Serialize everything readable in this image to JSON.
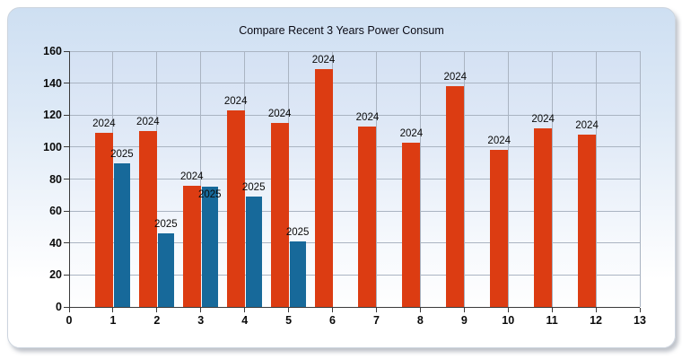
{
  "window": {
    "title": "Compare Recent 3 Years Power Consum"
  },
  "colors": {
    "bar_2024": "#dc3c12",
    "bar_2025": "#17699a",
    "gridline": "#aab4c2",
    "axis_line": "#3a3a3a",
    "tick_mark": "#3a3a3a",
    "text": "#0a0a0a"
  },
  "chart_data": {
    "type": "bar",
    "title": "Compare Recent 3 Years Power Consum",
    "xlabel": "",
    "ylabel": "",
    "xlim": [
      0,
      13
    ],
    "ylim": [
      0,
      160
    ],
    "x_ticks": [
      0,
      1,
      2,
      3,
      4,
      5,
      6,
      7,
      8,
      9,
      10,
      11,
      12,
      13
    ],
    "y_ticks": [
      0,
      20,
      40,
      60,
      80,
      100,
      120,
      140,
      160
    ],
    "grid": true,
    "legend_position": "none",
    "bar_value_labels": "series name (year) printed above each bar",
    "categories": [
      1,
      2,
      3,
      4,
      5,
      6,
      7,
      8,
      9,
      10,
      11,
      12
    ],
    "series": [
      {
        "name": "2024",
        "color": "#dc3c12",
        "values": [
          109,
          110,
          76,
          123,
          115,
          149,
          113,
          103,
          138,
          98,
          112,
          108
        ]
      },
      {
        "name": "2025",
        "color": "#17699a",
        "values": [
          90,
          46,
          75,
          69,
          41,
          null,
          null,
          null,
          null,
          null,
          null,
          null
        ]
      }
    ]
  }
}
